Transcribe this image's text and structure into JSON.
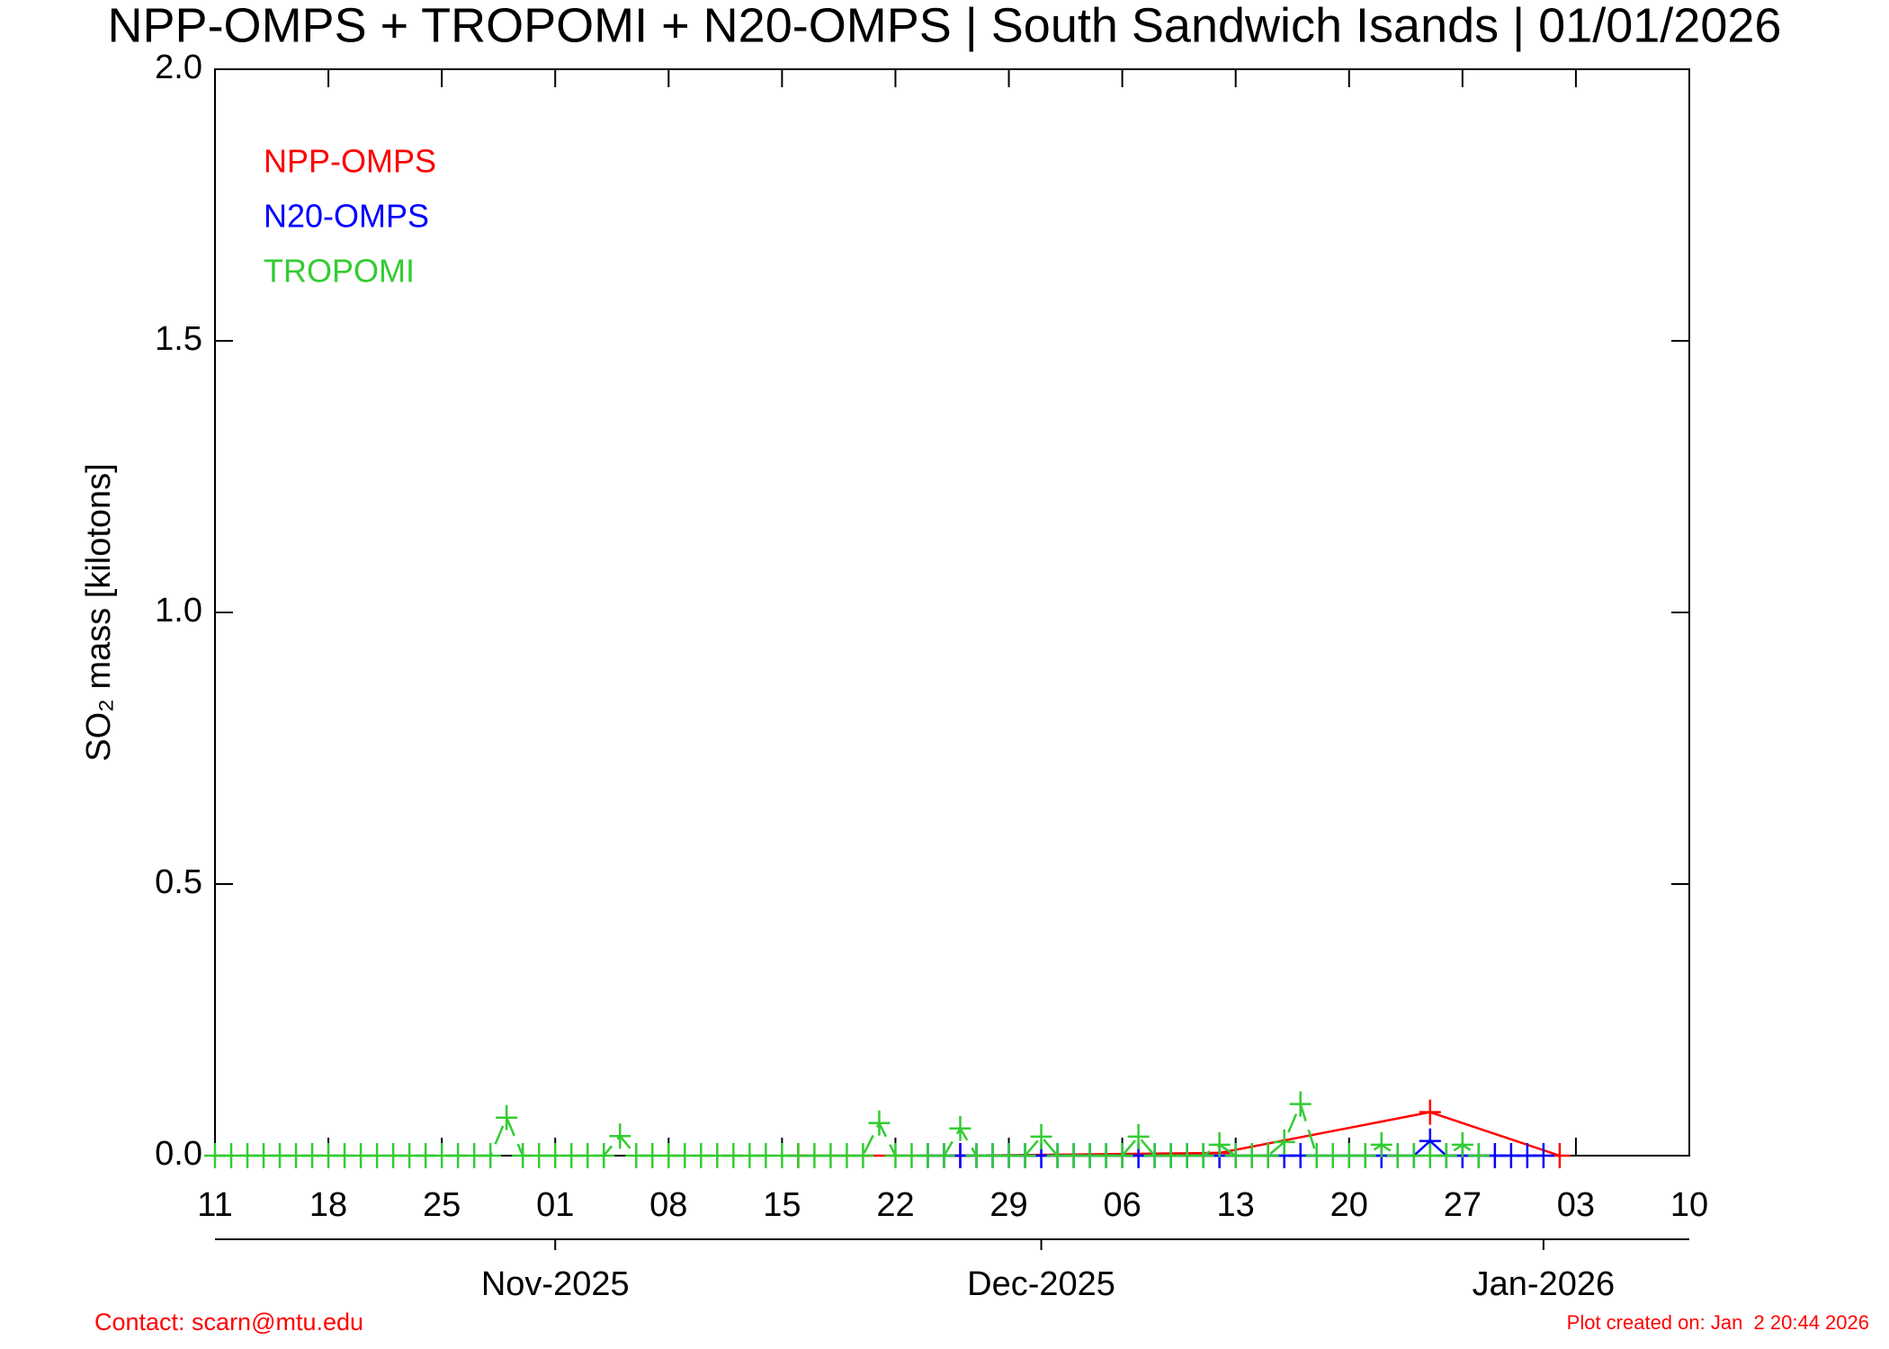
{
  "chart_data": {
    "type": "line",
    "title": "NPP-OMPS + TROPOMI + N20-OMPS | South Sandwich Isands | 01/01/2026",
    "ylabel": "SO₂ mass [kilotons]",
    "xlim": [
      "2025-10-11",
      "2026-01-10"
    ],
    "xticks": [
      {
        "value": "2025-10-11",
        "label": "11"
      },
      {
        "value": "2025-10-18",
        "label": "18"
      },
      {
        "value": "2025-10-25",
        "label": "25"
      },
      {
        "value": "2025-11-01",
        "label": "01"
      },
      {
        "value": "2025-11-08",
        "label": "08"
      },
      {
        "value": "2025-11-15",
        "label": "15"
      },
      {
        "value": "2025-11-22",
        "label": "22"
      },
      {
        "value": "2025-11-29",
        "label": "29"
      },
      {
        "value": "2025-12-06",
        "label": "06"
      },
      {
        "value": "2025-12-13",
        "label": "13"
      },
      {
        "value": "2025-12-20",
        "label": "20"
      },
      {
        "value": "2025-12-27",
        "label": "27"
      },
      {
        "value": "2026-01-03",
        "label": "03"
      },
      {
        "value": "2026-01-10",
        "label": "10"
      }
    ],
    "month_ticks": [
      {
        "value": "2025-11-01",
        "label": "Nov-2025"
      },
      {
        "value": "2025-12-01",
        "label": "Dec-2025"
      },
      {
        "value": "2026-01-01",
        "label": "Jan-2026"
      }
    ],
    "ylim": [
      0,
      2
    ],
    "yticks": [
      {
        "value": 0,
        "label": "0.0"
      },
      0.5,
      {
        "value": 1,
        "label": "1.0"
      },
      1.5,
      {
        "value": 2,
        "label": "2.0"
      }
    ],
    "series": [
      {
        "name": "NPP-OMPS",
        "color": "#ff0000",
        "dash": false,
        "x": [
          "2025-11-16",
          "2025-11-26",
          "2025-12-12",
          "2025-12-25",
          "2026-01-02"
        ],
        "values": [
          0,
          0,
          0.005,
          0.08,
          0
        ]
      },
      {
        "name": "N20-OMPS",
        "color": "#0000ff",
        "dash": false,
        "x": [
          "2025-11-24",
          "2025-11-25",
          "2025-11-26",
          "2025-11-27",
          "2025-11-28",
          "2025-11-29",
          "2025-11-30",
          "2025-12-01",
          "2025-12-02",
          "2025-12-03",
          "2025-12-04",
          "2025-12-05",
          "2025-12-06",
          "2025-12-07",
          "2025-12-08",
          "2025-12-09",
          "2025-12-10",
          "2025-12-11",
          "2025-12-12",
          "2025-12-13",
          "2025-12-14",
          "2025-12-15",
          "2025-12-16",
          "2025-12-17",
          "2025-12-18",
          "2025-12-19",
          "2025-12-20",
          "2025-12-21",
          "2025-12-22",
          "2025-12-23",
          "2025-12-24",
          "2025-12-25",
          "2025-12-26",
          "2025-12-27",
          "2025-12-28",
          "2025-12-29",
          "2025-12-30",
          "2025-12-31",
          "2026-01-01"
        ],
        "values": [
          0,
          0,
          0,
          0,
          0,
          0,
          0,
          0,
          0,
          0,
          0,
          0,
          0,
          0,
          0,
          0,
          0,
          0,
          0,
          0,
          0,
          0,
          0,
          0,
          0,
          0,
          0,
          0,
          0,
          0,
          0,
          0.027,
          0,
          0,
          0,
          0,
          0,
          0,
          0
        ]
      },
      {
        "name": "TROPOMI",
        "color": "#33cc33",
        "dash": true,
        "x": [
          "2025-10-11",
          "2025-10-12",
          "2025-10-13",
          "2025-10-14",
          "2025-10-15",
          "2025-10-16",
          "2025-10-17",
          "2025-10-18",
          "2025-10-19",
          "2025-10-20",
          "2025-10-21",
          "2025-10-22",
          "2025-10-23",
          "2025-10-24",
          "2025-10-25",
          "2025-10-26",
          "2025-10-27",
          "2025-10-28",
          "2025-10-29",
          "2025-10-30",
          "2025-10-31",
          "2025-11-01",
          "2025-11-02",
          "2025-11-03",
          "2025-11-04",
          "2025-11-05",
          "2025-11-06",
          "2025-11-07",
          "2025-11-08",
          "2025-11-09",
          "2025-11-10",
          "2025-11-11",
          "2025-11-12",
          "2025-11-13",
          "2025-11-14",
          "2025-11-15",
          "2025-11-16",
          "2025-11-17",
          "2025-11-18",
          "2025-11-19",
          "2025-11-20",
          "2025-11-21",
          "2025-11-22",
          "2025-11-23",
          "2025-11-24",
          "2025-11-25",
          "2025-11-26",
          "2025-11-27",
          "2025-11-28",
          "2025-11-29",
          "2025-11-30",
          "2025-12-01",
          "2025-12-02",
          "2025-12-03",
          "2025-12-04",
          "2025-12-05",
          "2025-12-06",
          "2025-12-07",
          "2025-12-08",
          "2025-12-09",
          "2025-12-10",
          "2025-12-11",
          "2025-12-12",
          "2025-12-13",
          "2025-12-14",
          "2025-12-15",
          "2025-12-16",
          "2025-12-17",
          "2025-12-18",
          "2025-12-19",
          "2025-12-20",
          "2025-12-21",
          "2025-12-22",
          "2025-12-23",
          "2025-12-24",
          "2025-12-25",
          "2025-12-26",
          "2025-12-27",
          "2025-12-28"
        ],
        "values": [
          0,
          0,
          0,
          0,
          0,
          0,
          0,
          0,
          0,
          0,
          0,
          0,
          0,
          0,
          0,
          0,
          0,
          0,
          0.07,
          0,
          0,
          0,
          0,
          0,
          0,
          0.036,
          0,
          0,
          0,
          0,
          0,
          0,
          0,
          0,
          0,
          0,
          0,
          0,
          0,
          0,
          0,
          0.06,
          0,
          0,
          0,
          0,
          0.05,
          0,
          0,
          0,
          0,
          0.035,
          0,
          0,
          0,
          0,
          0,
          0.035,
          0,
          0,
          0,
          0,
          0.02,
          0,
          0,
          0,
          0.025,
          0.095,
          0,
          0,
          0,
          0,
          0.02,
          0,
          0,
          0,
          0,
          0.02,
          0
        ]
      }
    ],
    "contact": "Contact: scarn@mtu.edu",
    "created": "Plot created on: Jan  2 20:44 2026"
  }
}
